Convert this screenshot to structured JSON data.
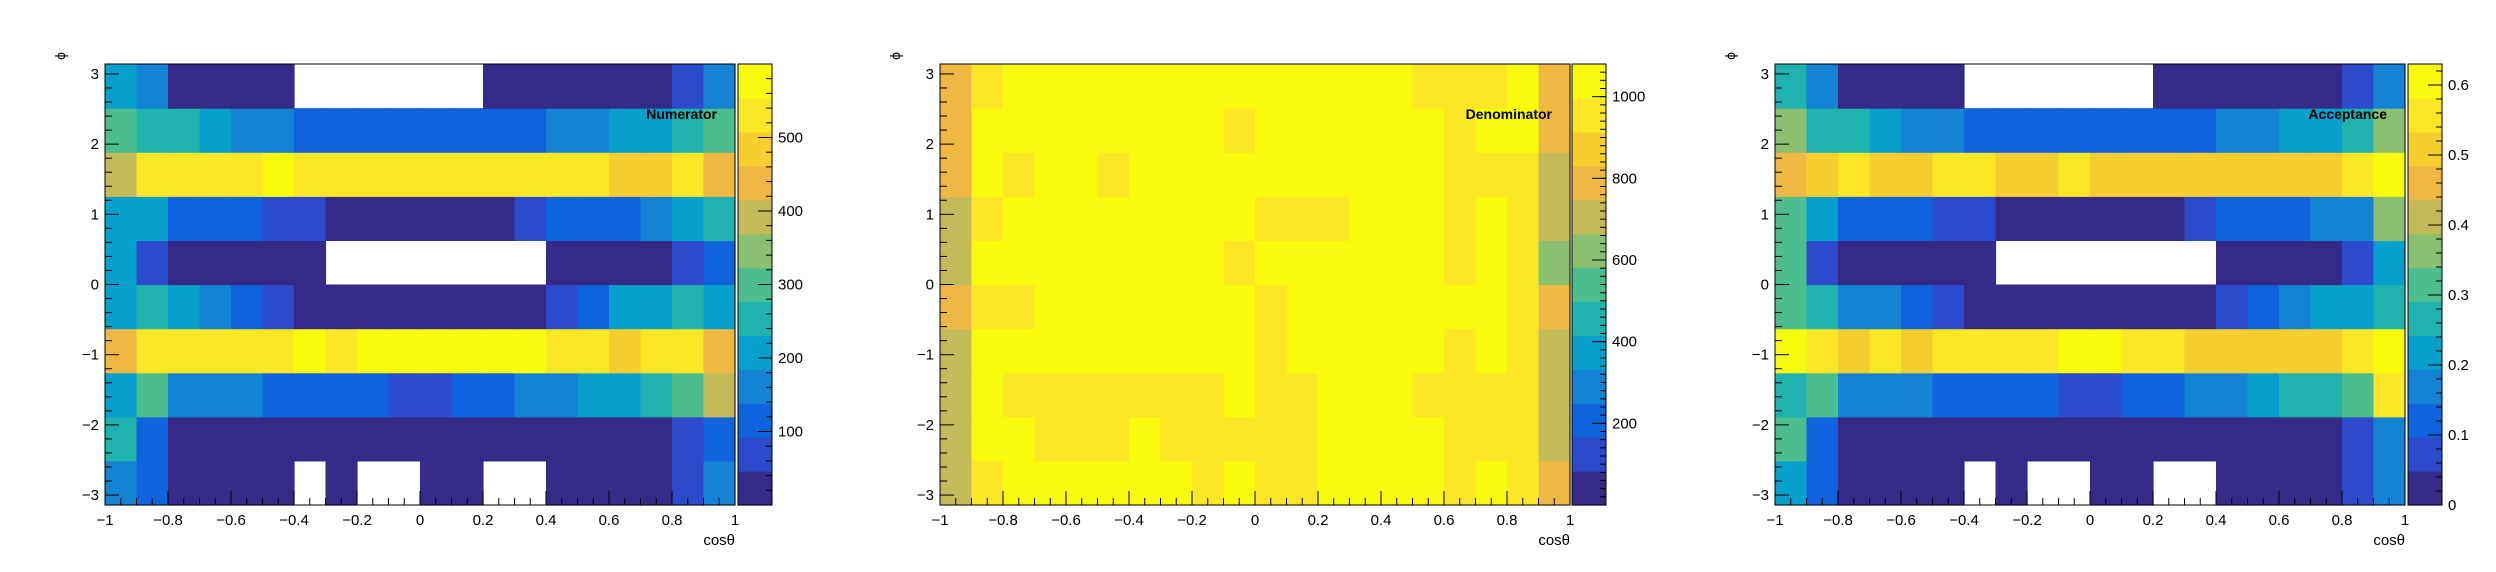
{
  "chart_data": [
    {
      "type": "heatmap",
      "title": "Numerator",
      "xlabel": "cosθ",
      "ylabel": "ϕ",
      "x_range": [
        -1,
        1
      ],
      "y_range": [
        -3.14159,
        3.14159
      ],
      "x_ticks": [
        "−1",
        "−0.8",
        "−0.6",
        "−0.4",
        "−0.2",
        "0",
        "0.2",
        "0.4",
        "0.6",
        "0.8",
        "1"
      ],
      "y_ticks": [
        "−3",
        "−2",
        "−1",
        "0",
        "1",
        "2",
        "3"
      ],
      "z_range": [
        0,
        600
      ],
      "z_ticks": [
        "100",
        "200",
        "300",
        "400",
        "500"
      ],
      "z_tick_values": [
        100,
        200,
        300,
        400,
        500
      ],
      "nx": 20,
      "ny": 10,
      "zeros_blank": true,
      "values": [
        [
          180,
          120,
          30,
          30,
          30,
          30,
          0,
          30,
          0,
          0,
          30,
          30,
          0,
          0,
          30,
          30,
          30,
          30,
          90,
          140
        ],
        [
          240,
          110,
          30,
          30,
          30,
          30,
          30,
          30,
          30,
          30,
          30,
          30,
          30,
          30,
          30,
          30,
          30,
          30,
          80,
          120
        ],
        [
          200,
          310,
          180,
          160,
          150,
          130,
          110,
          110,
          100,
          90,
          90,
          120,
          130,
          160,
          180,
          200,
          230,
          260,
          310,
          380
        ],
        [
          460,
          540,
          530,
          540,
          520,
          550,
          580,
          550,
          560,
          590,
          590,
          590,
          580,
          560,
          540,
          520,
          500,
          520,
          530,
          450
        ],
        [
          230,
          240,
          190,
          150,
          130,
          50,
          30,
          30,
          30,
          30,
          30,
          30,
          30,
          30,
          60,
          130,
          190,
          210,
          240,
          230
        ],
        [
          230,
          80,
          30,
          30,
          30,
          30,
          30,
          0,
          0,
          0,
          0,
          0,
          0,
          0,
          30,
          30,
          30,
          30,
          70,
          130
        ],
        [
          230,
          230,
          130,
          130,
          100,
          60,
          60,
          40,
          40,
          40,
          40,
          40,
          40,
          60,
          100,
          120,
          130,
          160,
          190,
          250
        ],
        [
          400,
          530,
          540,
          530,
          540,
          560,
          550,
          530,
          540,
          540,
          540,
          520,
          520,
          530,
          550,
          520,
          480,
          490,
          530,
          450
        ],
        [
          280,
          260,
          270,
          200,
          170,
          150,
          130,
          130,
          100,
          120,
          120,
          120,
          120,
          120,
          150,
          170,
          200,
          230,
          260,
          280
        ],
        [
          220,
          160,
          30,
          30,
          30,
          30,
          0,
          0,
          0,
          0,
          0,
          0,
          30,
          30,
          30,
          30,
          30,
          30,
          70,
          140
        ]
      ]
    },
    {
      "type": "heatmap",
      "title": "Denominator",
      "xlabel": "cosθ",
      "ylabel": "ϕ",
      "x_range": [
        -1,
        1
      ],
      "y_range": [
        -3.14159,
        3.14159
      ],
      "x_ticks": [
        "−1",
        "−0.8",
        "−0.6",
        "−0.4",
        "−0.2",
        "0",
        "0.2",
        "0.4",
        "0.6",
        "0.8",
        "1"
      ],
      "y_ticks": [
        "−3",
        "−2",
        "−1",
        "0",
        "1",
        "2",
        "3"
      ],
      "z_range": [
        0,
        1080
      ],
      "z_ticks": [
        "200",
        "400",
        "600",
        "800",
        "1000"
      ],
      "z_tick_values": [
        200,
        400,
        600,
        800,
        1000
      ],
      "nx": 20,
      "ny": 10,
      "zeros_blank": true,
      "note_rows": "row 0 = lowest phi bin",
      "values": [
        [
          720,
          980,
          1010,
          1000,
          1050,
          1040,
          1000,
          1010,
          990,
          1000,
          990,
          960,
          1000,
          1020,
          1050,
          1000,
          960,
          1010,
          990,
          760
        ],
        [
          730,
          1010,
          1010,
          960,
          980,
          990,
          1010,
          990,
          950,
          990,
          950,
          970,
          1010,
          1050,
          1050,
          1010,
          960,
          990,
          990,
          710
        ],
        [
          720,
          1010,
          990,
          990,
          960,
          960,
          970,
          990,
          950,
          1060,
          990,
          980,
          1040,
          1050,
          1040,
          980,
          920,
          940,
          990,
          680
        ],
        [
          700,
          1020,
          1040,
          1000,
          1040,
          1040,
          1030,
          1010,
          1000,
          1010,
          990,
          1020,
          1040,
          1050,
          1030,
          1010,
          990,
          1010,
          990,
          670
        ],
        [
          760,
          980,
          990,
          1020,
          1020,
          1020,
          1020,
          1010,
          1000,
          1010,
          990,
          1000,
          1050,
          1050,
          1040,
          1020,
          1010,
          1000,
          980,
          820
        ],
        [
          700,
          1000,
          1020,
          1000,
          1010,
          1010,
          1020,
          1020,
          1050,
          980,
          1000,
          1000,
          1000,
          1000,
          1000,
          1030,
          990,
          1000,
          980,
          650
        ],
        [
          740,
          990,
          1020,
          1010,
          1010,
          1010,
          1010,
          1040,
          1020,
          1010,
          990,
          960,
          990,
          1000,
          1040,
          1010,
          980,
          1000,
          990,
          720
        ],
        [
          830,
          1000,
          980,
          1010,
          1020,
          990,
          1000,
          1050,
          1040,
          1010,
          1010,
          1030,
          1040,
          1020,
          1040,
          1010,
          950,
          970,
          990,
          700
        ],
        [
          760,
          1000,
          1010,
          1020,
          1050,
          1030,
          1010,
          1020,
          1010,
          990,
          1060,
          1030,
          1030,
          1040,
          1020,
          1010,
          960,
          1000,
          1050,
          750
        ],
        [
          780,
          990,
          1000,
          1000,
          1020,
          1000,
          1050,
          1020,
          1020,
          1020,
          1020,
          1010,
          1030,
          1010,
          1020,
          990,
          960,
          960,
          1040,
          760
        ]
      ]
    },
    {
      "type": "heatmap",
      "title": "Acceptance",
      "xlabel": "cosθ",
      "ylabel": "ϕ",
      "x_range": [
        -1,
        1
      ],
      "y_range": [
        -3.14159,
        3.14159
      ],
      "x_ticks": [
        "−1",
        "−0.8",
        "−0.6",
        "−0.4",
        "−0.2",
        "0",
        "0.2",
        "0.4",
        "0.6",
        "0.8",
        "1"
      ],
      "y_ticks": [
        "−3",
        "−2",
        "−1",
        "0",
        "1",
        "2",
        "3"
      ],
      "z_range": [
        0,
        0.63
      ],
      "z_ticks": [
        "0",
        "0.1",
        "0.2",
        "0.3",
        "0.4",
        "0.5",
        "0.6"
      ],
      "z_tick_values": [
        0,
        0.1,
        0.2,
        0.3,
        0.4,
        0.5,
        0.6
      ],
      "nx": 20,
      "ny": 10,
      "zeros_blank": true,
      "values": [
        [
          0.24,
          0.12,
          0.03,
          0.03,
          0.03,
          0.03,
          0,
          0.03,
          0,
          0,
          0.03,
          0.03,
          0,
          0,
          0.03,
          0.03,
          0.03,
          0.03,
          0.09,
          0.16
        ],
        [
          0.31,
          0.11,
          0.03,
          0.03,
          0.03,
          0.03,
          0.03,
          0.03,
          0.03,
          0.03,
          0.03,
          0.03,
          0.03,
          0.03,
          0.03,
          0.03,
          0.03,
          0.03,
          0.08,
          0.16
        ],
        [
          0.28,
          0.31,
          0.18,
          0.16,
          0.16,
          0.14,
          0.11,
          0.11,
          0.11,
          0.09,
          0.09,
          0.12,
          0.13,
          0.15,
          0.17,
          0.2,
          0.25,
          0.28,
          0.31,
          0.55
        ],
        [
          0.6,
          0.54,
          0.53,
          0.55,
          0.51,
          0.55,
          0.58,
          0.55,
          0.56,
          0.59,
          0.59,
          0.58,
          0.56,
          0.53,
          0.53,
          0.52,
          0.5,
          0.53,
          0.54,
          0.61
        ],
        [
          0.31,
          0.25,
          0.19,
          0.15,
          0.13,
          0.05,
          0.03,
          0.03,
          0.03,
          0.03,
          0.03,
          0.03,
          0.03,
          0.03,
          0.06,
          0.13,
          0.19,
          0.21,
          0.24,
          0.28
        ],
        [
          0.33,
          0.08,
          0.03,
          0.03,
          0.03,
          0.03,
          0.03,
          0,
          0,
          0,
          0,
          0,
          0,
          0,
          0.03,
          0.03,
          0.03,
          0.03,
          0.07,
          0.2
        ],
        [
          0.31,
          0.23,
          0.13,
          0.13,
          0.1,
          0.06,
          0.06,
          0.04,
          0.04,
          0.04,
          0.04,
          0.04,
          0.04,
          0.06,
          0.1,
          0.12,
          0.13,
          0.16,
          0.19,
          0.35
        ],
        [
          0.48,
          0.53,
          0.55,
          0.52,
          0.53,
          0.57,
          0.55,
          0.5,
          0.52,
          0.54,
          0.53,
          0.5,
          0.5,
          0.52,
          0.53,
          0.51,
          0.5,
          0.5,
          0.54,
          0.64
        ],
        [
          0.37,
          0.26,
          0.27,
          0.2,
          0.16,
          0.15,
          0.13,
          0.13,
          0.1,
          0.12,
          0.11,
          0.12,
          0.12,
          0.12,
          0.15,
          0.17,
          0.21,
          0.23,
          0.25,
          0.37
        ],
        [
          0.28,
          0.16,
          0.03,
          0.03,
          0.03,
          0.03,
          0,
          0,
          0,
          0,
          0,
          0,
          0.03,
          0.03,
          0.03,
          0.03,
          0.03,
          0.03,
          0.07,
          0.18
        ]
      ]
    }
  ],
  "palette": [
    "#352a87",
    "#2b4bcc",
    "#0f63dd",
    "#1583d4",
    "#07a0cc",
    "#20b2ae",
    "#4bbd8e",
    "#8ac06f",
    "#c3bb5a",
    "#efb843",
    "#f6cf2f",
    "#fbe725",
    "#f9fb0e"
  ]
}
